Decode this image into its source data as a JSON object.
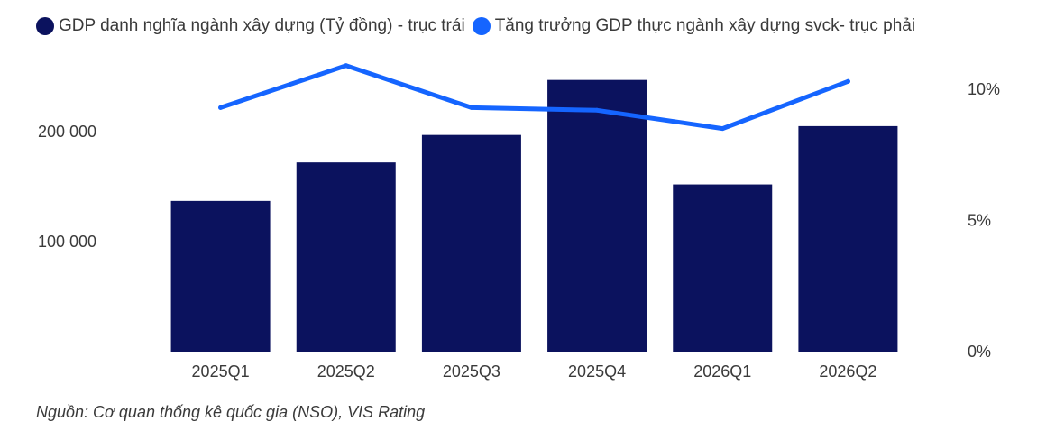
{
  "chart_data": {
    "type": "bar",
    "categories": [
      "2025Q1",
      "2025Q2",
      "2025Q3",
      "2025Q4",
      "2026Q1",
      "2026Q2"
    ],
    "series": [
      {
        "name": "GDP danh nghĩa ngành xây dựng (Tỷ đồng) - trục trái",
        "type": "bar",
        "axis": "left",
        "color": "#0b125e",
        "values": [
          137000,
          172000,
          197000,
          247000,
          152000,
          205000
        ]
      },
      {
        "name": "Tăng trưởng GDP thực ngành xây dựng svck- trục phải",
        "type": "line",
        "axis": "right",
        "color": "#1565ff",
        "values": [
          9.3,
          10.9,
          9.3,
          9.2,
          8.5,
          10.3
        ]
      }
    ],
    "y_left": {
      "ylim": [
        0,
        250000
      ],
      "ticks": [
        100000,
        200000
      ],
      "tick_labels": [
        "100 000",
        "200 000"
      ]
    },
    "y_right": {
      "ylim": [
        0,
        11
      ],
      "ticks": [
        0,
        5,
        10
      ],
      "tick_labels": [
        "0%",
        "5%",
        "10%"
      ]
    },
    "grid": false,
    "legend": "top-left",
    "title": "",
    "xlabel": "",
    "ylabel": ""
  },
  "source_note": "Nguồn: Cơ quan thống kê quốc gia (NSO), VIS Rating"
}
